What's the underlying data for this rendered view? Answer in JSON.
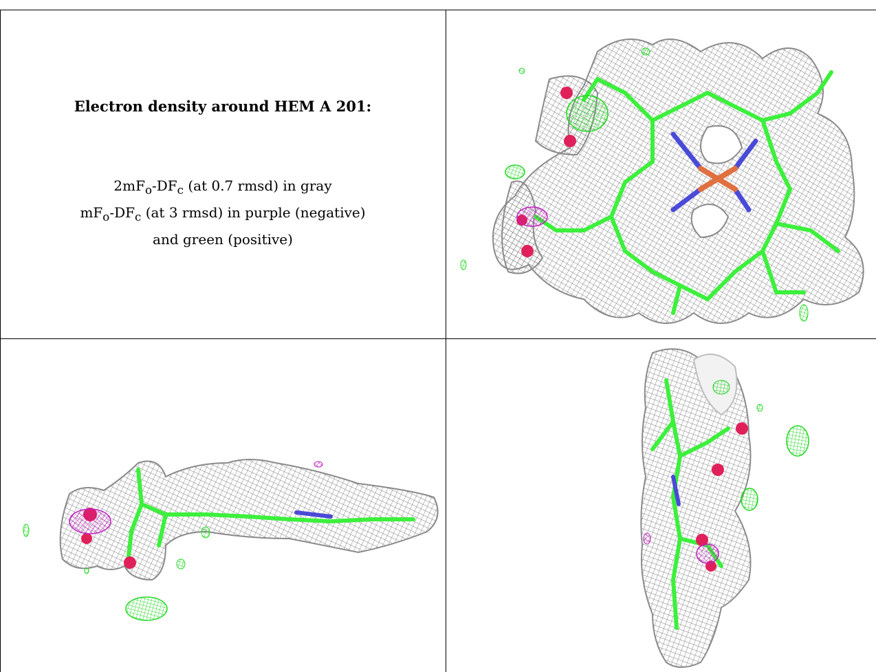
{
  "caption": {
    "title": "Electron density around HEM A 201:",
    "line1_prefix": "2mF",
    "line1_sub1": "o",
    "line1_mid": "-DF",
    "line1_sub2": "c",
    "line1_suffix": " (at 0.7 rmsd) in gray",
    "line2_prefix": "mF",
    "line2_sub1": "o",
    "line2_mid": "-DF",
    "line2_sub2": "c",
    "line2_suffix": " (at 3 rmsd) in purple (negative)",
    "line3": "and green (positive)"
  },
  "colors": {
    "mesh_gray": "#8a8a8a",
    "positive_green": "#2fe62f",
    "negative_purple": "#c020c0",
    "carbon_green": "#3cf03c",
    "nitrogen_blue": "#4a4ad8",
    "oxygen_red": "#e0205a",
    "iron_orange": "#e07040"
  }
}
